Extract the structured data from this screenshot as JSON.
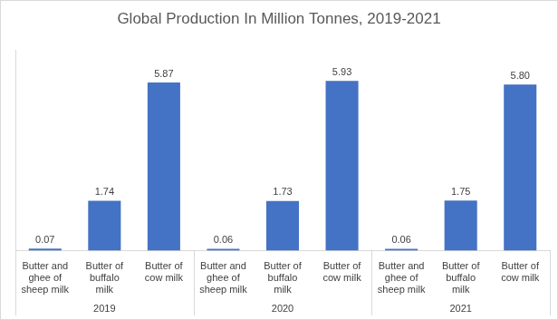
{
  "chart_data": {
    "type": "bar",
    "title": "Global Production In Million Tonnes, 2019-2021",
    "categories": [
      "Butter and ghee of sheep milk",
      "Butter of buffalo milk",
      "Butter of cow milk",
      "Butter and ghee of sheep milk",
      "Butter of buffalo milk",
      "Butter of cow milk",
      "Butter and ghee of sheep milk",
      "Butter of buffalo milk",
      "Butter of cow milk"
    ],
    "group_labels": [
      "2019",
      "2020",
      "2021"
    ],
    "values": [
      0.07,
      1.74,
      5.87,
      0.06,
      1.73,
      5.93,
      0.06,
      1.75,
      5.8
    ],
    "value_labels": [
      "0.07",
      "1.74",
      "5.87",
      "0.06",
      "1.73",
      "5.93",
      "0.06",
      "1.75",
      "5.80"
    ],
    "color": "#4472c4",
    "ylim": [
      0,
      7
    ],
    "grid": false,
    "data_labels": true,
    "tick_labels": "x"
  }
}
